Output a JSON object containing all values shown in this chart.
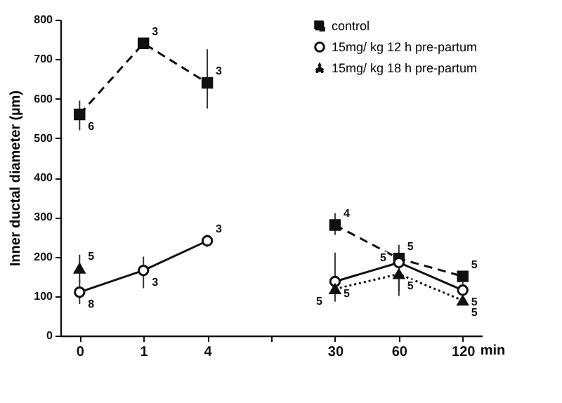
{
  "chart_data": {
    "type": "line",
    "ylabel": "Inner ductal diameter (µm)",
    "xlabel": "min",
    "categories": [
      "0",
      "1",
      "4",
      null,
      "30",
      "60",
      "120"
    ],
    "ylim": [
      0,
      800
    ],
    "yticks": [
      0,
      100,
      200,
      300,
      400,
      500,
      600,
      700,
      800
    ],
    "legend": "top right",
    "series": [
      {
        "name": "control",
        "color": "#111111",
        "marker": "square",
        "line_style": "dashed",
        "values": [
          560,
          740,
          640,
          null,
          280,
          195,
          150
        ],
        "errors": [
          [
            520,
            595
          ],
          null,
          [
            575,
            725
          ],
          null,
          [
            255,
            310
          ],
          null,
          null
        ]
      },
      {
        "name": "15mg/ kg 12 h  pre-partum",
        "color": "#111111",
        "marker": "circle",
        "line_style": "solid",
        "values": [
          110,
          165,
          240,
          null,
          137,
          185,
          115
        ],
        "errors": [
          [
            80,
            140
          ],
          [
            120,
            200
          ],
          [
            225,
            255
          ],
          null,
          [
            86,
            210
          ],
          [
            112,
            230
          ],
          [
            95,
            135
          ]
        ]
      },
      {
        "name": "15mg/ kg 18 h  pre-partum",
        "color": "#111111",
        "marker": "triangle",
        "line_style": "dotted",
        "values": [
          170,
          null,
          null,
          null,
          118,
          156,
          89
        ],
        "errors": [
          [
            135,
            205
          ],
          null,
          null,
          null,
          null,
          [
            100,
            175
          ],
          null
        ]
      }
    ],
    "annotations": [
      {
        "text": "6",
        "x": "0",
        "y": 560
      },
      {
        "text": "3",
        "x": "1",
        "y": 740
      },
      {
        "text": "3",
        "x": "4",
        "y": 640
      },
      {
        "text": "4",
        "x": "30",
        "y": 280
      },
      {
        "text": "5",
        "x": "60",
        "y": 195
      },
      {
        "text": "5",
        "x": "120",
        "y": 150
      },
      {
        "text": "8",
        "x": "0",
        "y": 110
      },
      {
        "text": "3",
        "x": "1",
        "y": 165
      },
      {
        "text": "3",
        "x": "4",
        "y": 240
      },
      {
        "text": "5",
        "x": "30",
        "y": 137
      },
      {
        "text": "5",
        "x": "60",
        "y": 185
      },
      {
        "text": "5",
        "x": "120",
        "y": 115
      },
      {
        "text": "5",
        "x": "0",
        "y": 170
      },
      {
        "text": "5",
        "x": "30",
        "y": 118
      },
      {
        "text": "5",
        "x": "60",
        "y": 156
      },
      {
        "text": "5",
        "x": "120",
        "y": 89
      }
    ]
  }
}
